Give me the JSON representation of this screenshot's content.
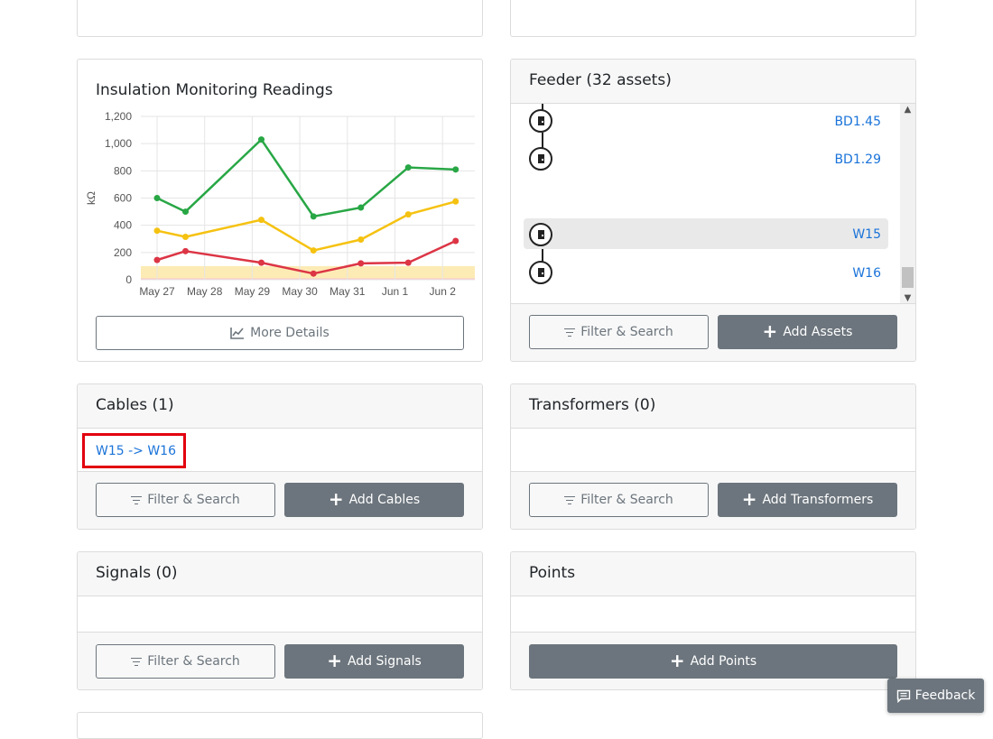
{
  "chart_card": {
    "title": "Insulation Monitoring Readings",
    "more_details_label": "More Details"
  },
  "chart_data": {
    "type": "line",
    "title": "Insulation Monitoring Readings",
    "ylabel": "kΩ",
    "xlabel": "",
    "categories": [
      "May 27",
      "May 28",
      "May 29",
      "May 30",
      "May 31",
      "Jun 1",
      "Jun 2"
    ],
    "x": [
      0,
      0.6,
      2.2,
      3.3,
      4.3,
      5.3,
      6.3
    ],
    "ylim": [
      0,
      1200
    ],
    "yticks": [
      0,
      200,
      400,
      600,
      800,
      1000,
      1200
    ],
    "ytick_labels": [
      "0",
      "200",
      "400",
      "600",
      "800",
      "1,000",
      "1,200"
    ],
    "grid": true,
    "bands": [
      {
        "from": 0,
        "to": 100,
        "color": "#fdebb5"
      },
      {
        "from": 0,
        "to": 10,
        "color": "#f7c6cf"
      }
    ],
    "series": [
      {
        "color": "#28a745",
        "values": [
          600,
          500,
          1030,
          465,
          530,
          825,
          810
        ]
      },
      {
        "color": "#f5c211",
        "values": [
          360,
          315,
          440,
          215,
          295,
          480,
          575
        ]
      },
      {
        "color": "#dc3545",
        "values": [
          145,
          210,
          125,
          45,
          120,
          125,
          285
        ]
      }
    ]
  },
  "feeder": {
    "title": "Feeder (32 assets)",
    "assets": [
      {
        "label": "BD1.45",
        "highlighted": false
      },
      {
        "label": "BD1.29",
        "highlighted": false
      },
      {
        "label": "W15",
        "highlighted": true
      },
      {
        "label": "W16",
        "highlighted": false
      }
    ],
    "filter_label": "Filter & Search",
    "add_label": "Add Assets"
  },
  "cables": {
    "title": "Cables (1)",
    "items": [
      "W15 -> W16"
    ],
    "filter_label": "Filter & Search",
    "add_label": "Add Cables"
  },
  "transformers": {
    "title": "Transformers (0)",
    "filter_label": "Filter & Search",
    "add_label": "Add Transformers"
  },
  "signals": {
    "title": "Signals (0)",
    "filter_label": "Filter & Search",
    "add_label": "Add Signals"
  },
  "points": {
    "title": "Points",
    "add_label": "Add Points"
  },
  "feedback": {
    "label": "Feedback"
  },
  "colors": {
    "link": "#1a73d9",
    "button_dark": "#6c757d",
    "highlight_box": "#e3000f"
  },
  "icons": {
    "chart": "chart-line-icon",
    "filter": "filter-icon",
    "plus": "plus-icon",
    "asset": "door-icon",
    "feedback": "comment-icon"
  }
}
